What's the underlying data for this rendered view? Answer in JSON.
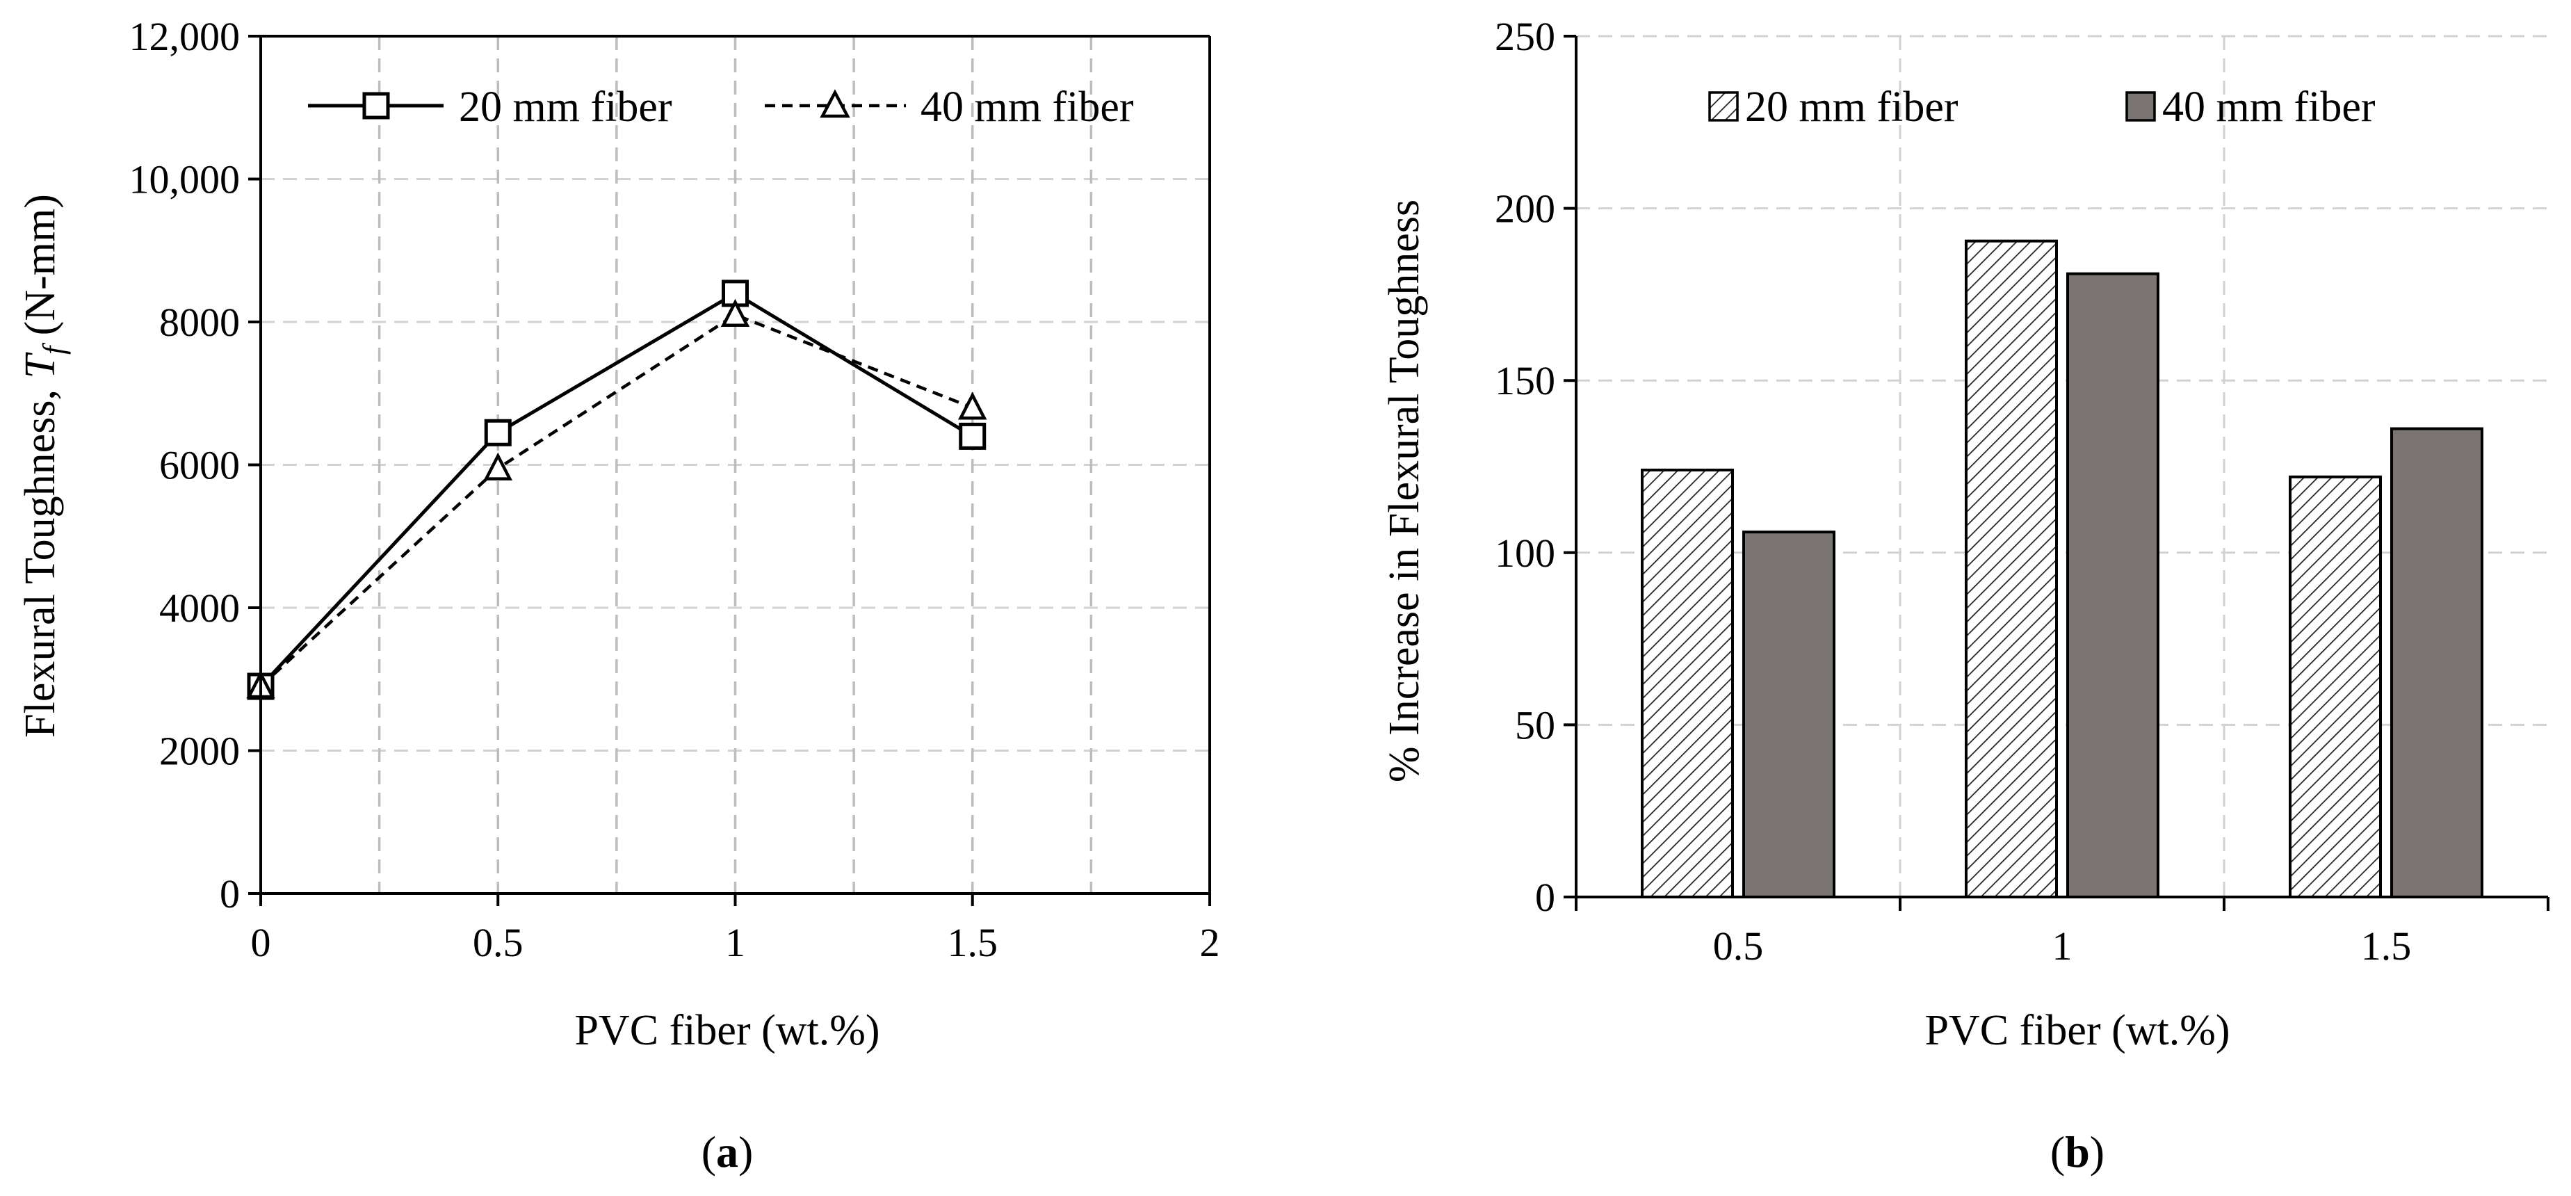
{
  "chart_data": [
    {
      "type": "line",
      "panel_label": "a",
      "xlabel": "PVC fiber (wt.%)",
      "ylabel_prefix": "Flexural Toughness, ",
      "ylabel_symbol": "T",
      "ylabel_subscript": "f",
      "ylabel_suffix": " (N-mm)",
      "x": [
        0,
        0.5,
        1,
        1.5
      ],
      "xlim": [
        0,
        2
      ],
      "ylim": [
        0,
        12000
      ],
      "x_ticks": [
        0,
        0.5,
        1,
        1.5,
        2
      ],
      "x_tick_labels": [
        "0",
        "0.5",
        "1",
        "1.5",
        "2"
      ],
      "y_ticks": [
        0,
        2000,
        4000,
        6000,
        8000,
        10000,
        12000
      ],
      "y_tick_labels": [
        "0",
        "2000",
        "4000",
        "6000",
        "8000",
        "10,000",
        "12,000"
      ],
      "grid": true,
      "legend_position": "top",
      "series": [
        {
          "name": "20 mm fiber",
          "values": [
            2900,
            6450,
            8400,
            6400
          ],
          "line_style": "solid",
          "marker": "square"
        },
        {
          "name": "40 mm fiber",
          "values": [
            2900,
            5950,
            8100,
            6800
          ],
          "line_style": "dashed",
          "marker": "triangle"
        }
      ]
    },
    {
      "type": "bar",
      "panel_label": "b",
      "xlabel": "PVC fiber (wt.%)",
      "ylabel": "% Increase in Flexural Toughness",
      "categories": [
        "0.5",
        "1",
        "1.5"
      ],
      "ylim": [
        0,
        250
      ],
      "y_ticks": [
        0,
        50,
        100,
        150,
        200,
        250
      ],
      "y_tick_labels": [
        "0",
        "50",
        "100",
        "150",
        "200",
        "250"
      ],
      "grid": true,
      "legend_position": "top",
      "series": [
        {
          "name": "20 mm fiber",
          "values": [
            124,
            190.5,
            122
          ],
          "fill": "hatched"
        },
        {
          "name": "40 mm fiber",
          "values": [
            106,
            181,
            136
          ],
          "fill": "#7a7472"
        }
      ]
    }
  ]
}
